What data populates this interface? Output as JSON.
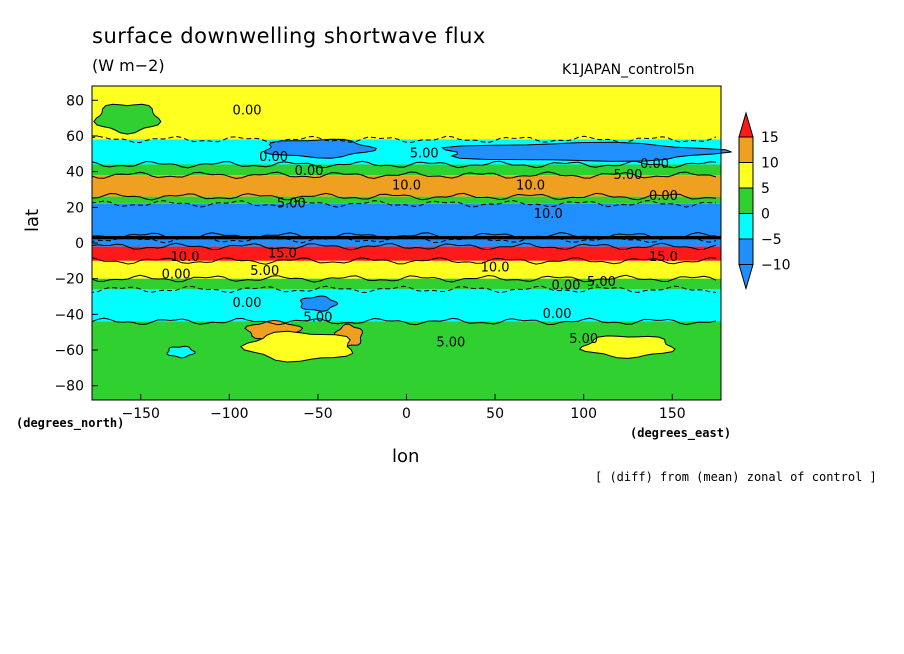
{
  "chart_data": {
    "type": "heatmap",
    "title": "surface downwelling shortwave flux",
    "units": "(W m−2)",
    "run_label": "K1JAPAN_control5n",
    "xlabel": "lon",
    "ylabel": "lat",
    "x_units": "(degrees_east)",
    "y_units": "(degrees_north)",
    "note": "[ (diff) from (mean) zonal of control ]",
    "xlim": [
      -177.5,
      177.5
    ],
    "ylim": [
      -88,
      88
    ],
    "x_ticks": [
      -150,
      -100,
      -50,
      0,
      50,
      100,
      150
    ],
    "y_ticks": [
      80,
      60,
      40,
      20,
      0,
      -20,
      -40,
      -60,
      -80
    ],
    "x_tick_labels": [
      "−150",
      "−100",
      "−50",
      "0",
      "50",
      "100",
      "150"
    ],
    "y_tick_labels": [
      "80",
      "60",
      "40",
      "20",
      "0",
      "−20",
      "−40",
      "−60",
      "−80"
    ],
    "colorbar": {
      "levels": [
        15,
        10,
        5,
        0,
        -5,
        -10
      ],
      "level_labels": [
        "15",
        "10",
        "5",
        "0",
        "−5",
        "−10"
      ],
      "colors": [
        "#ff1a1a",
        "#f0a020",
        "#ffff20",
        "#30d030",
        "#00ffff",
        "#2090ff"
      ],
      "extend": "both"
    },
    "bands": [
      {
        "lat_top": 88,
        "lat_bottom": 58,
        "value_class": 3
      },
      {
        "lat_top": 58,
        "lat_bottom": 44,
        "value_class": 1
      },
      {
        "lat_top": 44,
        "lat_bottom": 38,
        "value_class": 2
      },
      {
        "lat_top": 38,
        "lat_bottom": 26,
        "value_class": 4
      },
      {
        "lat_top": 26,
        "lat_bottom": 22,
        "value_class": 2
      },
      {
        "lat_top": 22,
        "lat_bottom": 4,
        "value_class": 0
      },
      {
        "lat_top": 4,
        "lat_bottom": 2,
        "value_class": 6
      },
      {
        "lat_top": 2,
        "lat_bottom": -2,
        "value_class": 0
      },
      {
        "lat_top": -2,
        "lat_bottom": -10,
        "value_class": 5
      },
      {
        "lat_top": -10,
        "lat_bottom": -20,
        "value_class": 3
      },
      {
        "lat_top": -20,
        "lat_bottom": -26,
        "value_class": 2
      },
      {
        "lat_top": -26,
        "lat_bottom": -44,
        "value_class": 1
      },
      {
        "lat_top": -44,
        "lat_bottom": -88,
        "value_class": 2
      }
    ],
    "patches": [
      {
        "lon": [
          -175,
          -140
        ],
        "lat": [
          78,
          62
        ],
        "value_class": 2
      },
      {
        "lon": [
          -80,
          -20
        ],
        "lat": [
          58,
          48
        ],
        "value_class": 0
      },
      {
        "lon": [
          20,
          175
        ],
        "lat": [
          56,
          46
        ],
        "value_class": 0
      },
      {
        "lon": [
          -90,
          -60
        ],
        "lat": [
          -44,
          -54
        ],
        "value_class": 4
      },
      {
        "lon": [
          -40,
          -25
        ],
        "lat": [
          -46,
          -58
        ],
        "value_class": 4
      },
      {
        "lon": [
          -90,
          -30
        ],
        "lat": [
          -50,
          -66
        ],
        "value_class": 3
      },
      {
        "lon": [
          100,
          150
        ],
        "lat": [
          -52,
          -64
        ],
        "value_class": 3
      },
      {
        "lon": [
          -135,
          -120
        ],
        "lat": [
          -58,
          -64
        ],
        "value_class": 1
      },
      {
        "lon": [
          -60,
          -40
        ],
        "lat": [
          -30,
          -38
        ],
        "value_class": 0
      }
    ],
    "contour_labels": [
      {
        "text": "0.00",
        "lon": -90,
        "lat": 72
      },
      {
        "text": "0.00",
        "lon": -75,
        "lat": 46
      },
      {
        "text": "5.00",
        "lon": 10,
        "lat": 48
      },
      {
        "text": "10.0",
        "lon": 0,
        "lat": 30
      },
      {
        "text": "10.0",
        "lon": 70,
        "lat": 30
      },
      {
        "text": "0.00",
        "lon": -55,
        "lat": 38
      },
      {
        "text": "5.00",
        "lon": 125,
        "lat": 36
      },
      {
        "text": "0.00",
        "lon": 140,
        "lat": 42
      },
      {
        "text": "10.0",
        "lon": 80,
        "lat": 14
      },
      {
        "text": "5.00",
        "lon": -65,
        "lat": 20
      },
      {
        "text": "0.00",
        "lon": 145,
        "lat": 24
      },
      {
        "text": "10.0",
        "lon": -125,
        "lat": -10
      },
      {
        "text": "15.0",
        "lon": -70,
        "lat": -8
      },
      {
        "text": "15.0",
        "lon": 145,
        "lat": -10
      },
      {
        "text": "5.00",
        "lon": -80,
        "lat": -18
      },
      {
        "text": "10.0",
        "lon": 50,
        "lat": -16
      },
      {
        "text": "0.00",
        "lon": -130,
        "lat": -20
      },
      {
        "text": "5.00",
        "lon": 110,
        "lat": -24
      },
      {
        "text": "0.00",
        "lon": 90,
        "lat": -26
      },
      {
        "text": "0.00",
        "lon": -90,
        "lat": -36
      },
      {
        "text": "5.00",
        "lon": -50,
        "lat": -44
      },
      {
        "text": "0.00",
        "lon": 85,
        "lat": -42
      },
      {
        "text": "5.00",
        "lon": 100,
        "lat": -56
      },
      {
        "text": "5.00",
        "lon": 25,
        "lat": -58
      }
    ]
  }
}
